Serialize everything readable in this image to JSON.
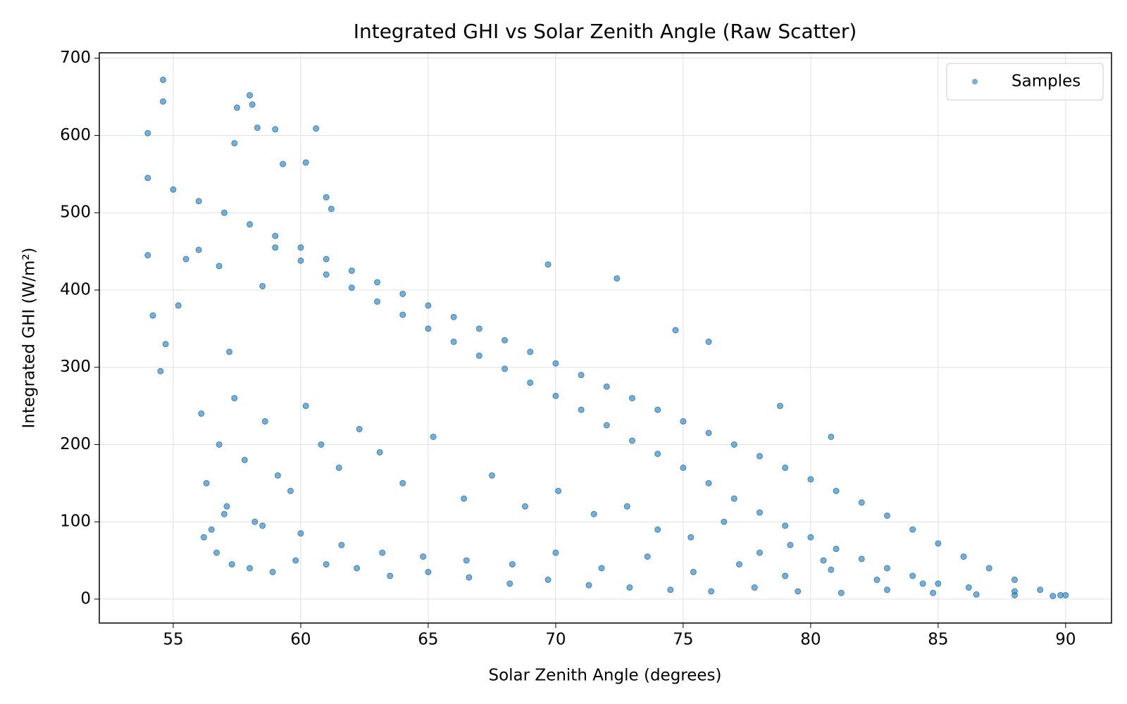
{
  "chart_data": {
    "type": "scatter",
    "title": "Integrated GHI vs Solar Zenith Angle (Raw Scatter)",
    "x_label": "Solar Zenith Angle (degrees)",
    "y_label": "Integrated GHI (W/m²)",
    "x": [
      54,
      55,
      56,
      57,
      58,
      59,
      60,
      61,
      62,
      63,
      64,
      65,
      66,
      67,
      68,
      69,
      70,
      71,
      72,
      73,
      74,
      75,
      76,
      77,
      78,
      79,
      80,
      81,
      82,
      83,
      84,
      85,
      86,
      87,
      88,
      89,
      90,
      59,
      60,
      61,
      62,
      63,
      64,
      65,
      66,
      67,
      68,
      69,
      70,
      71,
      72,
      73,
      74,
      75,
      76,
      77,
      78,
      79,
      80,
      81,
      82,
      83,
      84,
      85,
      54.6,
      54.6,
      54,
      57.5,
      58,
      58.1,
      60.6,
      59,
      57.4,
      58.3,
      60.2,
      59.3,
      61,
      61.2,
      69.7,
      72.4,
      74.7,
      76,
      80.8,
      78.8,
      54,
      54.2,
      54.7,
      55.5,
      56,
      56.8,
      54.5,
      55.2,
      57.2,
      58.5,
      56.1,
      56.3,
      56.5,
      56.8,
      57.1,
      57.4,
      57.8,
      58.2,
      58.6,
      59.1,
      59.6,
      60.2,
      60.8,
      61.5,
      62.3,
      63.1,
      64,
      65.2,
      66.4,
      67.5,
      68.8,
      70.1,
      71.5,
      72.8,
      74,
      75.3,
      76.6,
      78,
      79.2,
      80.5,
      56.2,
      56.7,
      57.3,
      58,
      58.9,
      59.8,
      61,
      62.2,
      63.5,
      65,
      66.6,
      68.2,
      69.7,
      71.3,
      72.9,
      74.5,
      76.1,
      77.8,
      79.5,
      81.2,
      83,
      84.8,
      86.5,
      88,
      89.5,
      57,
      58.5,
      60,
      61.6,
      63.2,
      64.8,
      66.5,
      68.3,
      70,
      71.8,
      73.6,
      75.4,
      77.2,
      79,
      80.8,
      82.6,
      84.4,
      86.2,
      88,
      89.8
    ],
    "series": [
      {
        "name": "Samples",
        "color": "#1f77b4",
        "values": [
          545,
          530,
          515,
          500,
          485,
          470,
          455,
          440,
          425,
          410,
          395,
          380,
          365,
          350,
          335,
          320,
          305,
          290,
          275,
          260,
          245,
          230,
          215,
          200,
          185,
          170,
          155,
          140,
          125,
          108,
          90,
          72,
          55,
          40,
          25,
          12,
          5,
          455,
          438,
          420,
          403,
          385,
          368,
          350,
          333,
          315,
          298,
          280,
          263,
          245,
          225,
          205,
          188,
          170,
          150,
          130,
          112,
          95,
          80,
          65,
          52,
          40,
          30,
          20,
          672,
          644,
          603,
          636,
          652,
          640,
          609,
          608,
          590,
          610,
          565,
          563,
          520,
          505,
          433,
          415,
          348,
          333,
          210,
          250,
          445,
          367,
          330,
          440,
          452,
          431,
          295,
          380,
          320,
          405,
          240,
          150,
          90,
          200,
          120,
          260,
          180,
          100,
          230,
          160,
          140,
          250,
          200,
          170,
          220,
          190,
          150,
          210,
          130,
          160,
          120,
          140,
          110,
          120,
          90,
          80,
          100,
          60,
          70,
          50,
          80,
          60,
          45,
          40,
          35,
          50,
          45,
          40,
          30,
          35,
          28,
          20,
          25,
          18,
          15,
          12,
          10,
          15,
          10,
          8,
          12,
          8,
          6,
          5,
          4,
          110,
          95,
          85,
          70,
          60,
          55,
          50,
          45,
          60,
          40,
          55,
          35,
          45,
          30,
          38,
          25,
          20,
          15,
          10,
          5
        ]
      }
    ],
    "xlim": [
      52.1,
      91.8
    ],
    "ylim": [
      -31,
      707
    ],
    "xticks": [
      55,
      60,
      65,
      70,
      75,
      80,
      85,
      90
    ],
    "yticks": [
      0,
      100,
      200,
      300,
      400,
      500,
      600,
      700
    ],
    "grid": true,
    "legend": "upper right"
  }
}
